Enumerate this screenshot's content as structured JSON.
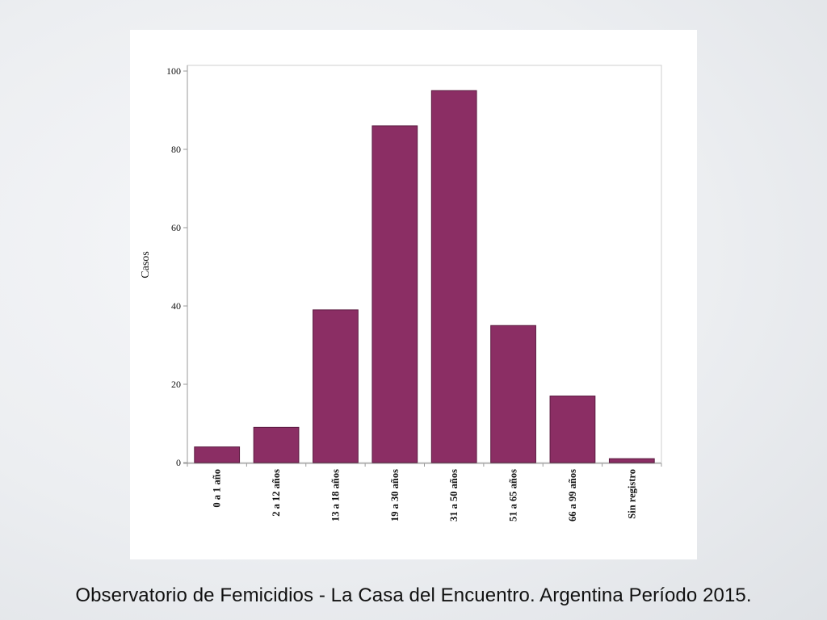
{
  "caption": "Observatorio de Femicidios - La Casa del Encuentro.  Argentina Período 2015.",
  "colors": {
    "bar": "#8b2e64",
    "bar_edge": "#5a1a3f",
    "frame": "#cfcfcf",
    "axis": "#9a9a9a"
  },
  "chart_data": {
    "type": "bar",
    "title": "",
    "xlabel": "",
    "ylabel": "Casos",
    "categories": [
      "0 a  1 año",
      "2 a 12 años",
      "13 a 18 años",
      "19 a 30 años",
      "31 a 50 años",
      "51 a 65 años",
      "66 a 99 años",
      "Sin registro"
    ],
    "values": [
      4,
      9,
      39,
      86,
      95,
      35,
      17,
      1
    ],
    "ylim": [
      0,
      100
    ],
    "yticks": [
      0,
      20,
      40,
      60,
      80,
      100
    ],
    "grid": false
  }
}
